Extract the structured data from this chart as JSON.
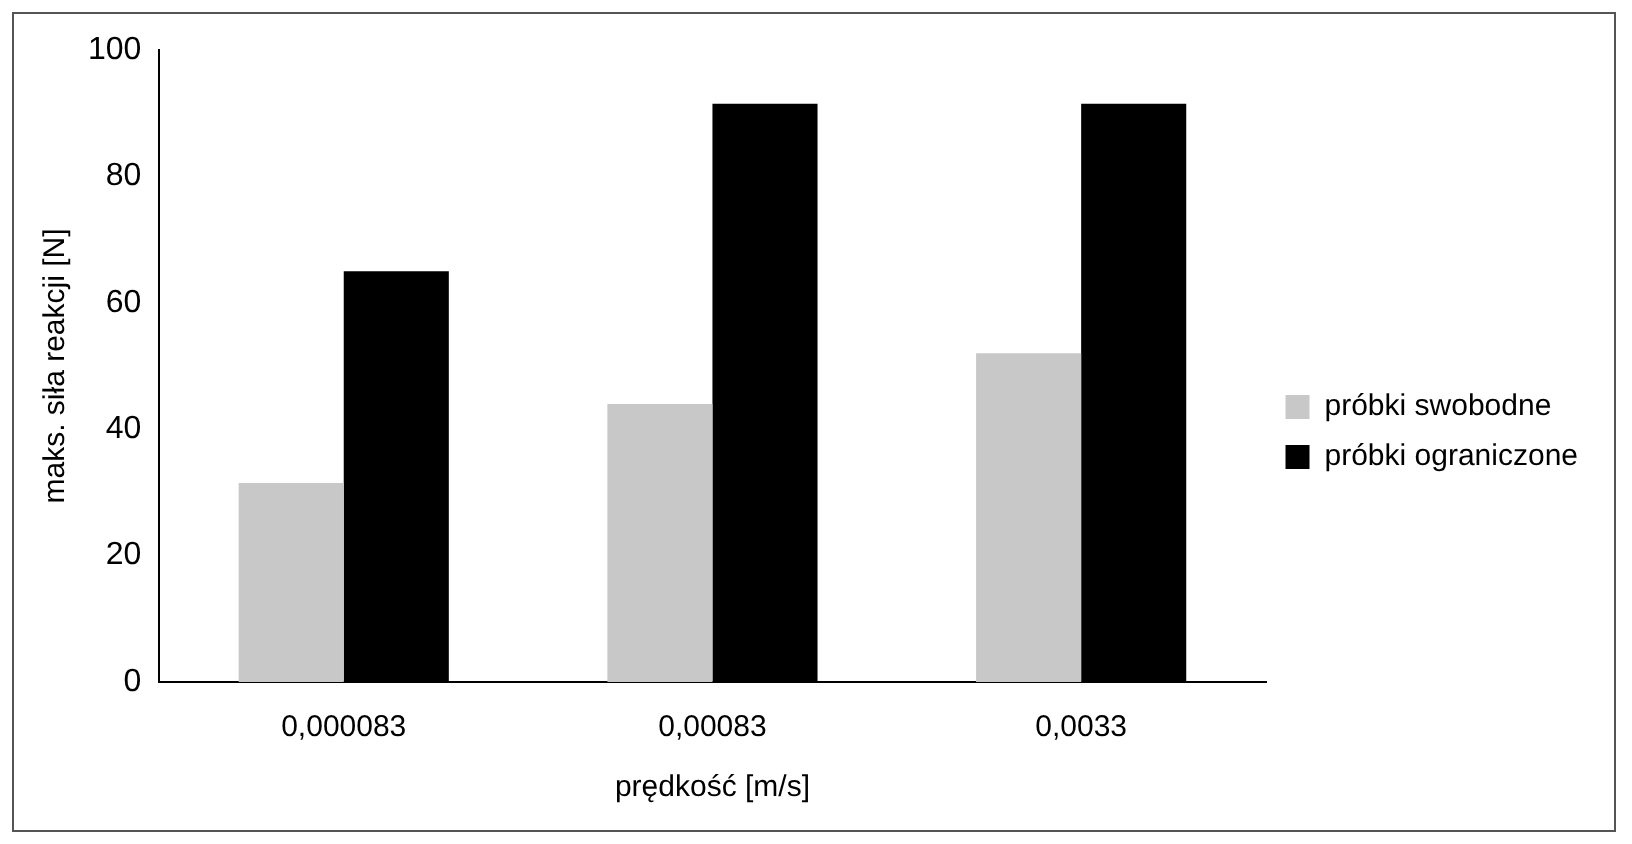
{
  "chart_data": {
    "type": "bar",
    "xlabel": "prędkość [m/s]",
    "ylabel": "maks. siła reakcji [N]",
    "categories": [
      "0,000083",
      "0,00083",
      "0,0033"
    ],
    "series": [
      {
        "name": "próbki swobodne",
        "color": "#c8c8c8",
        "values": [
          31.5,
          44,
          52
        ]
      },
      {
        "name": "próbki ograniczone",
        "color": "#000000",
        "values": [
          65,
          91.5,
          91.5
        ]
      }
    ],
    "ylim": [
      0,
      100
    ],
    "yticks": [
      0,
      20,
      40,
      60,
      80,
      100
    ],
    "grid": false,
    "legend": "right"
  }
}
